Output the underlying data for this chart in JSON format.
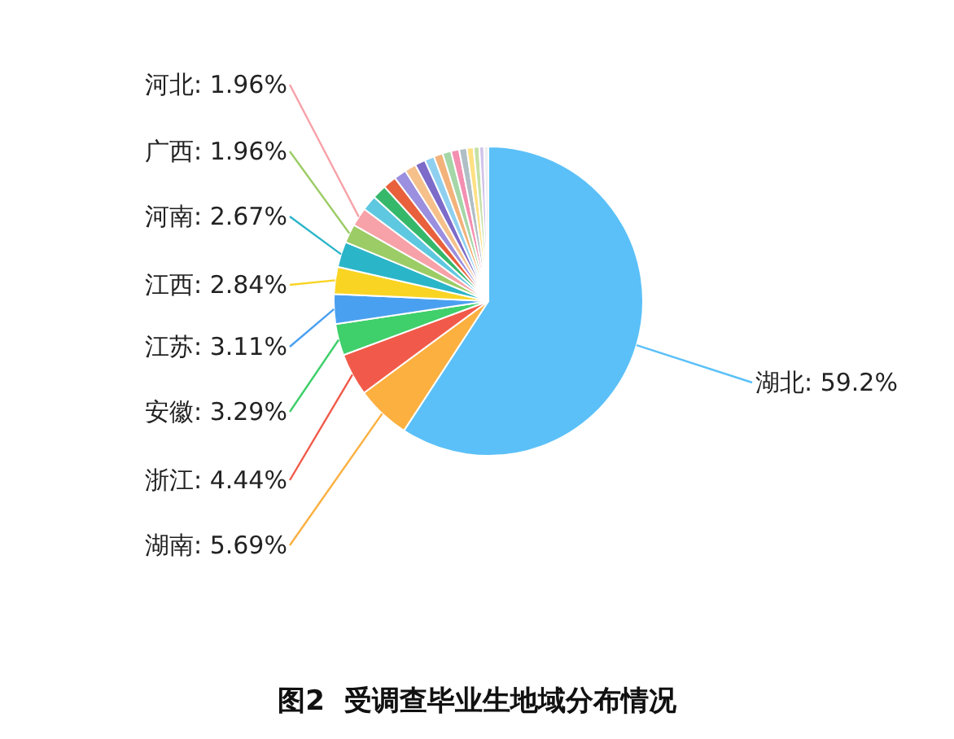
{
  "chart_data": {
    "type": "pie",
    "title": "图2  受调查毕业生地域分布情况",
    "categories": [
      "湖北",
      "湖南",
      "浙江",
      "安徽",
      "江苏",
      "江西",
      "河南",
      "广西",
      "河北",
      null,
      null,
      null,
      null,
      null,
      null,
      null,
      null,
      null,
      null,
      null,
      null,
      null,
      null,
      null
    ],
    "values": [
      59.2,
      5.69,
      4.44,
      3.29,
      3.11,
      2.84,
      2.67,
      1.96,
      1.96,
      1.6,
      1.5,
      1.4,
      1.3,
      1.2,
      1.1,
      1.0,
      0.95,
      0.9,
      0.85,
      0.8,
      0.7,
      0.6,
      0.5,
      0.44
    ],
    "value_labels": [
      "59.2%",
      "5.69%",
      "4.44%",
      "3.29%",
      "3.11%",
      "2.84%",
      "2.67%",
      "1.96%",
      "1.96%",
      null,
      null,
      null,
      null,
      null,
      null,
      null,
      null,
      null,
      null,
      null,
      null,
      null,
      null,
      null
    ],
    "colors": [
      "#5bc0f8",
      "#fbb040",
      "#f15a4a",
      "#3fcf6b",
      "#4aa0f0",
      "#f9d423",
      "#2bb5c8",
      "#9ccc65",
      "#f7a1a8",
      "#5ec8e0",
      "#36b86a",
      "#e8603c",
      "#9b8fe0",
      "#f5c08a",
      "#7d6bc9",
      "#8fd0f0",
      "#f3b27a",
      "#a5d6a7",
      "#f48fb1",
      "#b0bec5",
      "#ffe082",
      "#c5e1a5",
      "#d1c4e9",
      "#eeeeee"
    ],
    "legend": false
  }
}
